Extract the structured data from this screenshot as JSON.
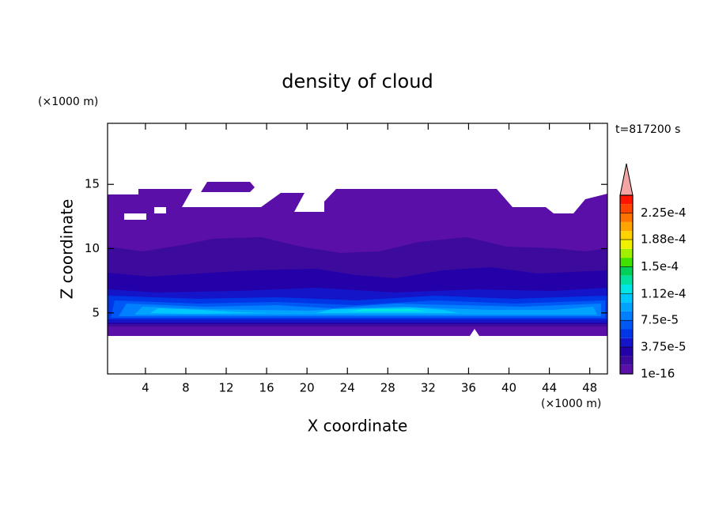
{
  "chart_data": {
    "type": "contour",
    "title": "density of cloud",
    "x_label": "X coordinate",
    "y_label": "Z coordinate",
    "x_unit": "(×1000 m)",
    "y_unit": "(×1000 m)",
    "annotation": "t=817200 s",
    "xlim": [
      0.25,
      49.75
    ],
    "ylim": [
      0.25,
      19.75
    ],
    "xticks": [
      4,
      8,
      12,
      16,
      20,
      24,
      28,
      32,
      36,
      40,
      44,
      48
    ],
    "yticks": [
      5,
      10,
      15
    ],
    "colorbar": {
      "clim": [
        1e-16,
        0.00025
      ],
      "colors": [
        "#5a0fa8",
        "#3c0a9c",
        "#2400a8",
        "#1414c8",
        "#0036e6",
        "#0058f4",
        "#0080ff",
        "#00a4ff",
        "#00c8ff",
        "#00e6e6",
        "#00e0a0",
        "#00d05a",
        "#40e000",
        "#a0f000",
        "#f0f000",
        "#ffd200",
        "#ffa400",
        "#ff7400",
        "#ff4400",
        "#ff1400"
      ],
      "extend_color": "#f4a4a4",
      "ticks": [
        {
          "value": 1e-16,
          "label": "1e-16"
        },
        {
          "value": 3.75e-05,
          "label": "3.75e-5"
        },
        {
          "value": 7.5e-05,
          "label": "7.5e-5"
        },
        {
          "value": 0.000112,
          "label": "1.12e-4"
        },
        {
          "value": 0.00015,
          "label": "1.5e-4"
        },
        {
          "value": 0.000188,
          "label": "1.88e-4"
        },
        {
          "value": 0.000225,
          "label": "2.25e-4"
        }
      ]
    }
  }
}
